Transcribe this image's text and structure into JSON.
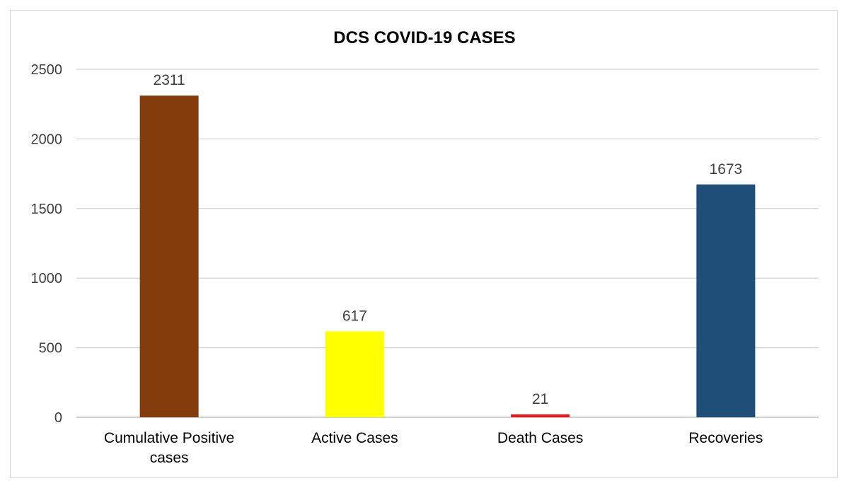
{
  "chart_data": {
    "type": "bar",
    "title": "DCS COVID-19 CASES",
    "xlabel": "",
    "ylabel": "",
    "categories": [
      "Cumulative Positive cases",
      "Active Cases",
      "Death Cases",
      "Recoveries"
    ],
    "category_lines": [
      [
        "Cumulative Positive",
        "cases"
      ],
      [
        "Active Cases"
      ],
      [
        "Death Cases"
      ],
      [
        "Recoveries"
      ]
    ],
    "values": [
      2311,
      617,
      21,
      1673
    ],
    "data_labels": [
      "2311",
      "617",
      "21",
      "1673"
    ],
    "bar_colors": [
      "#843c0c",
      "#ffff00",
      "#e31a1c",
      "#1f4e79"
    ],
    "ylim": [
      0,
      2500
    ],
    "yticks": [
      0,
      500,
      1000,
      1500,
      2000,
      2500
    ],
    "grid": true,
    "legend": "none"
  }
}
